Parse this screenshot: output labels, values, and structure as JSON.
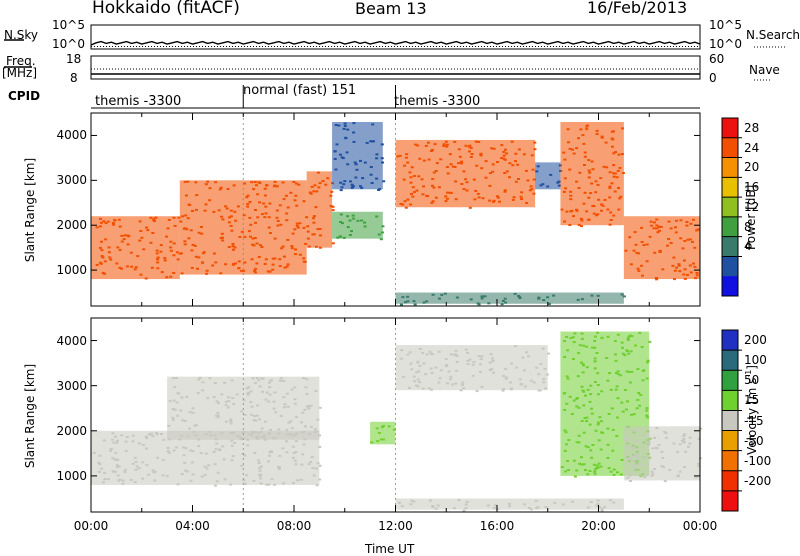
{
  "header": {
    "station": "Hokkaido (fitACF)",
    "beam": "Beam 13",
    "date": "16/Feb/2013"
  },
  "labels": {
    "nsky": "N.Sky",
    "nsearch": "N.Search",
    "freq": "Freq.",
    "freq_unit": "[MHz]",
    "nave": "Nave",
    "cpid": "CPID",
    "slant_range": "Slant Range [km]",
    "power": "Power [dB]",
    "velocity": "Velocity [m s",
    "velocity_exp": "-1",
    "time": "Time UT"
  },
  "noise_axis": {
    "left": [
      "10^5",
      "10^0"
    ],
    "right": [
      "10^5",
      "10^0"
    ]
  },
  "freq_axis": {
    "left": [
      "18",
      "8"
    ],
    "right": [
      "60",
      "0"
    ]
  },
  "cpid_segments": [
    {
      "start": 0,
      "end": 6,
      "label": "themis -3300"
    },
    {
      "start": 6,
      "end": 12,
      "label": "normal (fast) 151"
    },
    {
      "start": 12,
      "end": 24,
      "label": "themis -3300"
    }
  ],
  "power_scale": {
    "ticks": [
      "28",
      "24",
      "20",
      "16",
      "12",
      "8",
      "4"
    ],
    "colors": [
      "#ee1111",
      "#f25000",
      "#f59000",
      "#e8c000",
      "#90c020",
      "#40a040",
      "#3a7a6a",
      "#2050a0",
      "#1010e0"
    ]
  },
  "velocity_scale": {
    "ticks": [
      "200",
      "100",
      "50",
      "15",
      "-15",
      "-50",
      "-100",
      "-200"
    ],
    "colors": [
      "#2030c0",
      "#2a6a7a",
      "#30a040",
      "#70d030",
      "#c8c8c0",
      "#e8a000",
      "#f07000",
      "#f03000",
      "#ee1010"
    ]
  },
  "chart_data": [
    {
      "type": "heatmap",
      "title": "Power",
      "ylabel": "Slant Range [km]",
      "xlim": [
        0,
        24
      ],
      "ylim": [
        200,
        4500
      ],
      "yticks": [
        "1000",
        "2000",
        "3000",
        "4000"
      ],
      "colorbar_label": "Power [dB]",
      "colorbar_ticks": [
        4,
        8,
        12,
        16,
        20,
        24,
        28
      ],
      "regions": [
        {
          "t0": 0.0,
          "t1": 3.5,
          "r0": 800,
          "r1": 2200,
          "value": 26
        },
        {
          "t0": 3.5,
          "t1": 8.5,
          "r0": 900,
          "r1": 3000,
          "value": 28
        },
        {
          "t0": 8.5,
          "t1": 9.5,
          "r0": 1500,
          "r1": 3200,
          "value": 25
        },
        {
          "t0": 9.5,
          "t1": 11.5,
          "r0": 1700,
          "r1": 2300,
          "value": 14
        },
        {
          "t0": 9.5,
          "t1": 11.5,
          "r0": 2800,
          "r1": 4300,
          "value": 6
        },
        {
          "t0": 12.0,
          "t1": 17.5,
          "r0": 2400,
          "r1": 3900,
          "value": 26
        },
        {
          "t0": 17.5,
          "t1": 18.5,
          "r0": 2800,
          "r1": 3400,
          "value": 6
        },
        {
          "t0": 18.5,
          "t1": 21.0,
          "r0": 2000,
          "r1": 4300,
          "value": 27
        },
        {
          "t0": 21.0,
          "t1": 24.0,
          "r0": 800,
          "r1": 2200,
          "value": 27
        },
        {
          "t0": 12.0,
          "t1": 21.0,
          "r0": 250,
          "r1": 500,
          "value": 8
        }
      ]
    },
    {
      "type": "heatmap",
      "title": "Velocity",
      "ylabel": "Slant Range [km]",
      "xlabel": "Time UT",
      "xlim": [
        0,
        24
      ],
      "ylim": [
        200,
        4500
      ],
      "yticks": [
        "1000",
        "2000",
        "3000",
        "4000"
      ],
      "xticks": [
        "00:00",
        "04:00",
        "08:00",
        "12:00",
        "16:00",
        "20:00",
        "00:00"
      ],
      "colorbar_label": "Velocity [m s-1]",
      "colorbar_ticks": [
        -200,
        -100,
        -50,
        -15,
        15,
        50,
        100,
        200
      ],
      "regions": [
        {
          "t0": 0.0,
          "t1": 9.0,
          "r0": 800,
          "r1": 2000,
          "value": 0
        },
        {
          "t0": 3.0,
          "t1": 9.0,
          "r0": 1800,
          "r1": 3200,
          "value": 0
        },
        {
          "t0": 11.0,
          "t1": 12.0,
          "r0": 1700,
          "r1": 2200,
          "value": 40
        },
        {
          "t0": 12.0,
          "t1": 18.0,
          "r0": 2900,
          "r1": 3900,
          "value": 0
        },
        {
          "t0": 18.5,
          "t1": 22.0,
          "r0": 1000,
          "r1": 4200,
          "value": 30
        },
        {
          "t0": 21.0,
          "t1": 24.0,
          "r0": 900,
          "r1": 2100,
          "value": 0
        },
        {
          "t0": 12.0,
          "t1": 21.0,
          "r0": 250,
          "r1": 500,
          "value": 20
        }
      ]
    }
  ]
}
